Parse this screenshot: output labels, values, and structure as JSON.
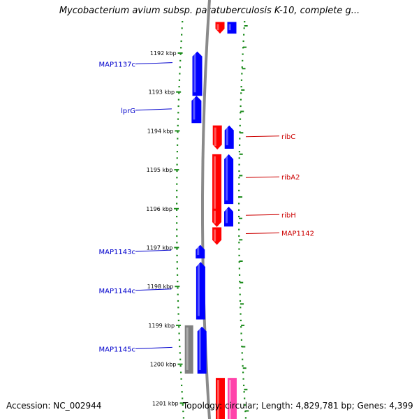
{
  "title": "Mycobacterium avium subsp. paratuberculosis K-10, complete g...",
  "footer": {
    "accession": "Accession: NC_002944",
    "info": "Topology: circular; Length: 4,829,781 bp; Genes: 4,399"
  },
  "colors": {
    "forward": "#ff0000",
    "reverse": "#0000ff",
    "pseudo": "#808080",
    "other": "#ff44aa",
    "backbone": "#8a8a8a",
    "ruler": "#1a8a1a",
    "label_left": "#0000cc",
    "label_right": "#cc0000"
  },
  "ticks": [
    "1192 kbp",
    "1193 kbp",
    "1194 kbp",
    "1195 kbp",
    "1196 kbp",
    "1197 kbp",
    "1198 kbp",
    "1199 kbp",
    "1200 kbp",
    "1201 kbp"
  ],
  "left_labels": [
    {
      "text": "MAP1137c",
      "kb": 1192.28
    },
    {
      "text": "lprG",
      "kb": 1193.47
    },
    {
      "text": "MAP1143c",
      "kb": 1197.1
    },
    {
      "text": "MAP1144c",
      "kb": 1198.1
    },
    {
      "text": "MAP1145c",
      "kb": 1199.6
    }
  ],
  "right_labels": [
    {
      "text": "ribC",
      "kb": 1194.15
    },
    {
      "text": "ribA2",
      "kb": 1195.2
    },
    {
      "text": "ribH",
      "kb": 1196.17
    },
    {
      "text": "MAP1142",
      "kb": 1196.64
    }
  ],
  "genes": [
    {
      "lane": "outer_rev",
      "color": "reverse",
      "start": 1191.96,
      "end": 1193.1,
      "dir": "up"
    },
    {
      "lane": "outer_rev",
      "color": "reverse",
      "start": 1193.1,
      "end": 1193.8,
      "dir": "up"
    },
    {
      "lane": "inner_rev",
      "color": "reverse",
      "start": 1196.93,
      "end": 1197.28,
      "dir": "up"
    },
    {
      "lane": "inner_rev",
      "color": "reverse",
      "start": 1197.37,
      "end": 1198.85,
      "dir": "up"
    },
    {
      "lane": "inner_rev",
      "color": "reverse",
      "start": 1199.03,
      "end": 1200.24,
      "dir": "up"
    },
    {
      "lane": "pseudo",
      "color": "pseudo",
      "start": 1199.0,
      "end": 1200.24,
      "dir": "none"
    },
    {
      "lane": "fwd",
      "color": "forward",
      "start": 1191.2,
      "end": 1191.5,
      "dir": "down"
    },
    {
      "lane": "fwd",
      "color": "forward",
      "start": 1193.86,
      "end": 1194.48,
      "dir": "down"
    },
    {
      "lane": "fwd",
      "color": "forward",
      "start": 1194.6,
      "end": 1196.37,
      "dir": "down"
    },
    {
      "lane": "fwd",
      "color": "forward",
      "start": 1196.0,
      "end": 1196.47,
      "dir": "down"
    },
    {
      "lane": "fwd",
      "color": "forward",
      "start": 1196.48,
      "end": 1196.93,
      "dir": "down"
    },
    {
      "lane": "fwd",
      "color": "forward",
      "start": 1200.35,
      "end": 1201.5,
      "dir": "none"
    },
    {
      "lane": "rev2",
      "color": "reverse",
      "start": 1191.2,
      "end": 1191.5,
      "dir": "none"
    },
    {
      "lane": "rev2",
      "color": "reverse",
      "start": 1193.86,
      "end": 1194.46,
      "dir": "up"
    },
    {
      "lane": "rev2",
      "color": "reverse",
      "start": 1194.6,
      "end": 1195.88,
      "dir": "up"
    },
    {
      "lane": "rev2",
      "color": "reverse",
      "start": 1195.95,
      "end": 1196.46,
      "dir": "up"
    },
    {
      "lane": "rev2",
      "color": "other",
      "start": 1200.35,
      "end": 1201.5,
      "dir": "none"
    }
  ]
}
